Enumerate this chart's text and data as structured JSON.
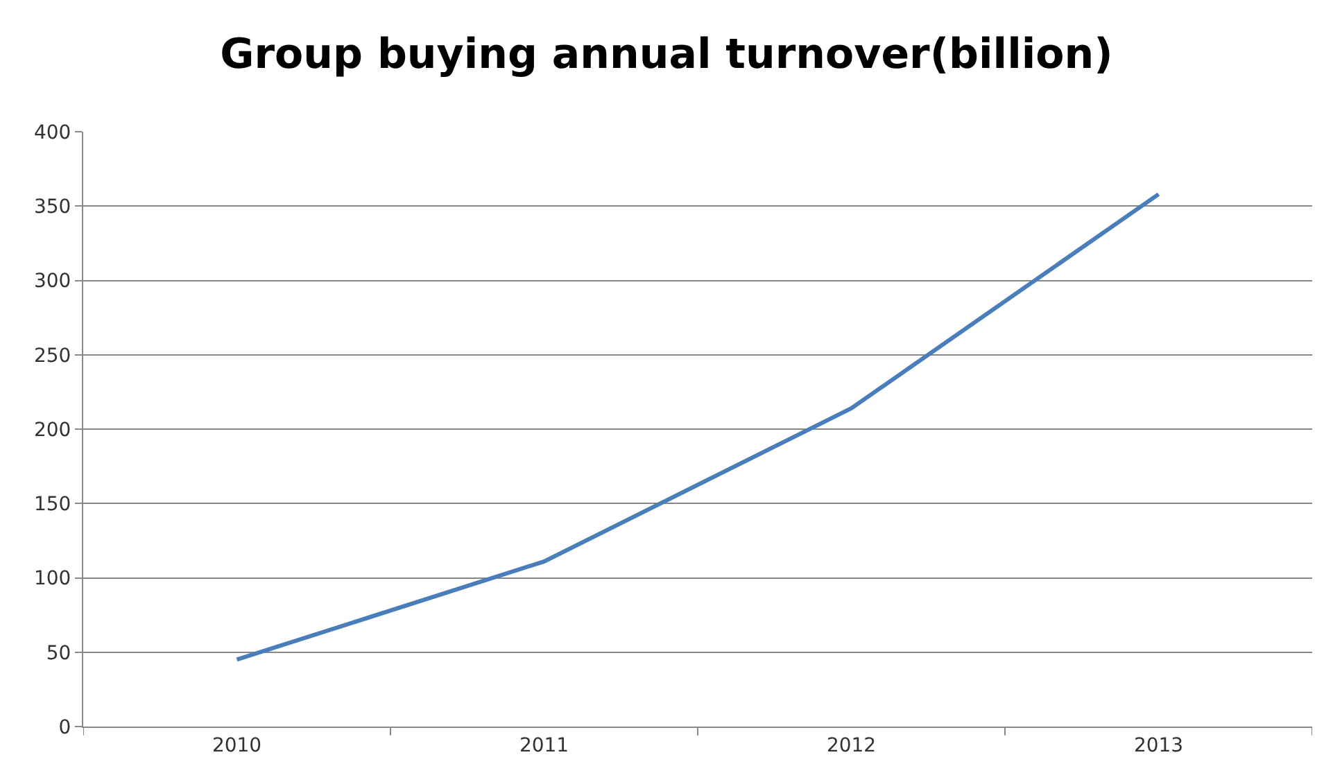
{
  "chart_data": {
    "type": "line",
    "title": "Group buying annual turnover(billion)",
    "categories": [
      "2010",
      "2011",
      "2012",
      "2013"
    ],
    "series": [
      {
        "color": "#4a7ebb",
        "values": [
          45,
          111,
          214,
          358
        ]
      }
    ],
    "ylim": [
      0,
      400
    ],
    "yticks": [
      0,
      50,
      100,
      150,
      200,
      250,
      300,
      350,
      400
    ],
    "grid": "y",
    "marker": "none",
    "line_style": "solid"
  }
}
